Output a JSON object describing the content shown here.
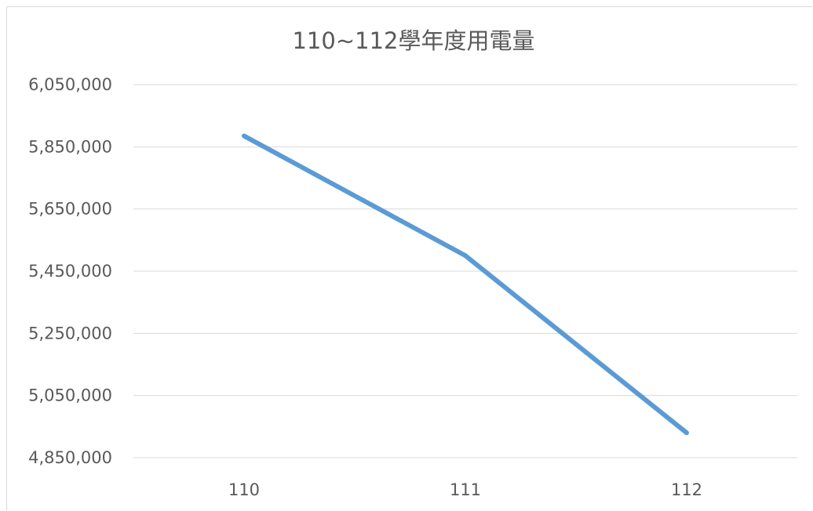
{
  "chart_data": {
    "type": "line",
    "title": "110~112學年度用電量",
    "xlabel": "",
    "ylabel": "",
    "categories": [
      "110",
      "111",
      "112"
    ],
    "series": [
      {
        "values": [
          5885000,
          5500000,
          4930000
        ],
        "color": "#5b9bd5"
      }
    ],
    "ylim": [
      4850000,
      6050000
    ],
    "yticks": [
      4850000,
      5050000,
      5250000,
      5450000,
      5650000,
      5850000,
      6050000
    ],
    "ytick_labels": [
      "4,850,000",
      "5,050,000",
      "5,250,000",
      "5,450,000",
      "5,650,000",
      "5,850,000",
      "6,050,000"
    ],
    "grid": true,
    "legend": "none"
  }
}
